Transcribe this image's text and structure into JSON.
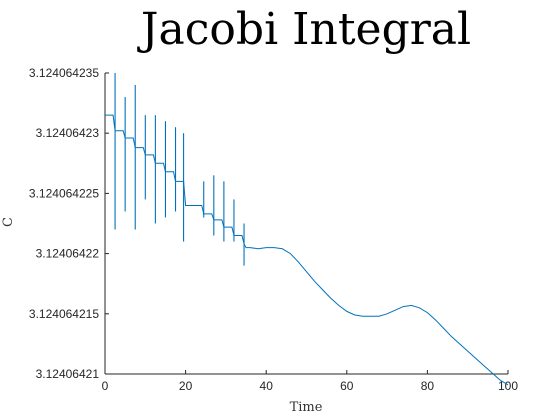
{
  "chart_data": {
    "type": "line",
    "title": "Jacobi Integral",
    "xlabel": "Time",
    "ylabel": "C",
    "xlim": [
      0,
      100
    ],
    "ylim": [
      3.12406421,
      3.124064235
    ],
    "grid": false,
    "xticks": [
      0,
      20,
      40,
      60,
      80,
      100
    ],
    "xtick_labels": [
      "0",
      "20",
      "40",
      "60",
      "80",
      "100"
    ],
    "yticks": [
      3.12406421,
      3.124064215,
      3.12406422,
      3.124064225,
      3.12406423,
      3.124064235
    ],
    "ytick_labels": [
      "3.12406421",
      "3.124064215",
      "3.12406422",
      "3.124064225",
      "3.12406423",
      "3.124064235"
    ],
    "color": "#0072BD",
    "series": [
      {
        "x": [
          0,
          2,
          2.5,
          4.5,
          5,
          7,
          7.5,
          9.5,
          10,
          12,
          12.5,
          14.5,
          15,
          17,
          17.5,
          19.5,
          20,
          22,
          24,
          24.5,
          26.5,
          27,
          29,
          29.5,
          31.5,
          32,
          34,
          34.5,
          35,
          36,
          38,
          40,
          42,
          44,
          46,
          48,
          50,
          52,
          54,
          56,
          58,
          60,
          62,
          64,
          66,
          68,
          70,
          72,
          74,
          76,
          78,
          80,
          82,
          84,
          86,
          88,
          90,
          92,
          94,
          96,
          98,
          100
        ],
        "y": [
          3.1240642315,
          3.1240642315,
          3.1240642302,
          3.1240642302,
          3.1240642296,
          3.1240642296,
          3.1240642288,
          3.1240642288,
          3.1240642282,
          3.1240642282,
          3.1240642275,
          3.1240642275,
          3.1240642268,
          3.1240642268,
          3.124064226,
          3.124064226,
          3.124064224,
          3.124064224,
          3.124064224,
          3.1240642233,
          3.1240642233,
          3.1240642228,
          3.1240642228,
          3.1240642222,
          3.1240642222,
          3.1240642215,
          3.1240642215,
          3.1240642208,
          3.1240642205,
          3.1240642205,
          3.1240642204,
          3.1240642205,
          3.1240642205,
          3.1240642204,
          3.12406422,
          3.1240642193,
          3.1240642185,
          3.1240642177,
          3.124064217,
          3.1240642163,
          3.1240642157,
          3.1240642152,
          3.1240642149,
          3.1240642148,
          3.1240642148,
          3.1240642148,
          3.124064215,
          3.1240642153,
          3.1240642156,
          3.1240642157,
          3.1240642155,
          3.1240642151,
          3.1240642145,
          3.1240642138,
          3.1240642131,
          3.1240642125,
          3.1240642119,
          3.1240642113,
          3.1240642107,
          3.1240642101,
          3.1240642095,
          3.1240642091
        ]
      }
    ],
    "spikes": [
      {
        "x": 2.5,
        "min": 3.124064222,
        "max": 3.124064235
      },
      {
        "x": 5,
        "min": 3.1240642235,
        "max": 3.124064233
      },
      {
        "x": 7.5,
        "min": 3.124064222,
        "max": 3.124064234
      },
      {
        "x": 10,
        "min": 3.1240642245,
        "max": 3.1240642315
      },
      {
        "x": 12.5,
        "min": 3.1240642225,
        "max": 3.1240642315
      },
      {
        "x": 15,
        "min": 3.124064223,
        "max": 3.124064231
      },
      {
        "x": 17.5,
        "min": 3.1240642235,
        "max": 3.1240642305
      },
      {
        "x": 19.5,
        "min": 3.124064221,
        "max": 3.12406423
      },
      {
        "x": 24.5,
        "min": 3.124064223,
        "max": 3.124064226
      },
      {
        "x": 27,
        "min": 3.1240642215,
        "max": 3.1240642265
      },
      {
        "x": 29.5,
        "min": 3.124064221,
        "max": 3.124064226
      },
      {
        "x": 32,
        "min": 3.124064221,
        "max": 3.1240642245
      },
      {
        "x": 34.5,
        "min": 3.124064219,
        "max": 3.1240642225
      }
    ]
  }
}
